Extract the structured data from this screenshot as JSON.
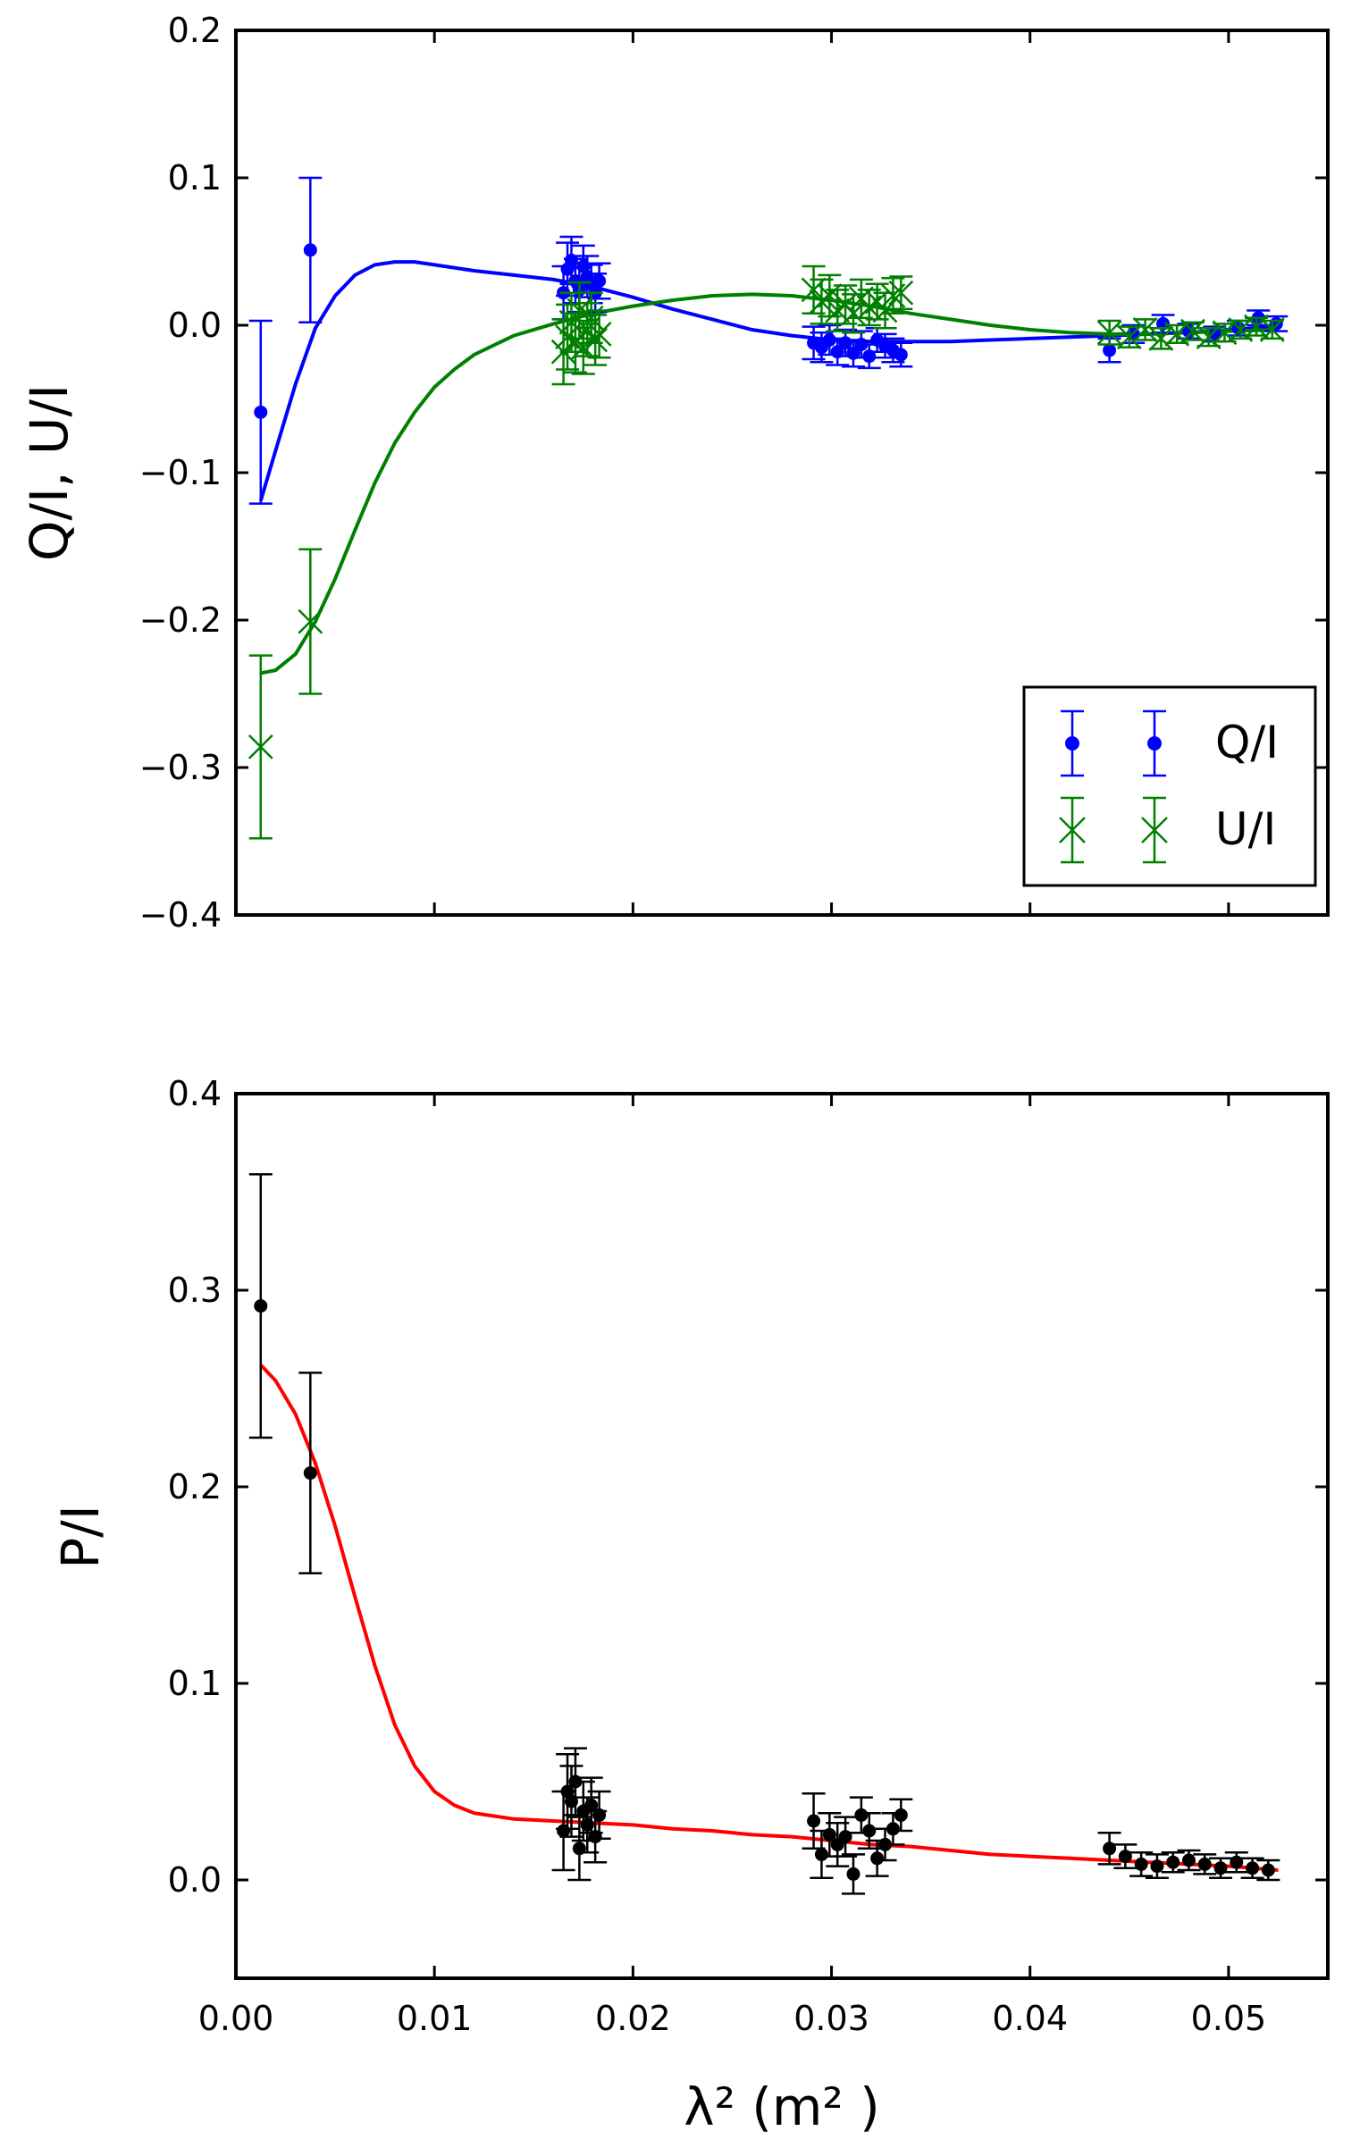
{
  "chart_data": [
    {
      "type": "scatter",
      "ylabel": "Q/I, U/I",
      "xlim": [
        0.0,
        0.055
      ],
      "ylim": [
        -0.4,
        0.2
      ],
      "x_ticks": [
        0.0,
        0.01,
        0.02,
        0.03,
        0.04,
        0.05
      ],
      "y_ticks": [
        -0.4,
        -0.3,
        -0.2,
        -0.1,
        0.0,
        0.1,
        0.2
      ],
      "y_tick_labels": [
        "−0.4",
        "−0.3",
        "−0.2",
        "−0.1",
        "0.0",
        "0.1",
        "0.2"
      ],
      "legend": {
        "placement": "lower-right",
        "entries": [
          "Q/I",
          "U/I"
        ]
      },
      "colors": {
        "q": "#0000ff",
        "u": "#008000"
      },
      "series": [
        {
          "name": "Q/I",
          "marker": "o",
          "color": "#0000ff",
          "points": [
            {
              "x": 0.00125,
              "y": -0.059,
              "err": 0.062
            },
            {
              "x": 0.00375,
              "y": 0.051,
              "err": 0.049
            },
            {
              "x": 0.0165,
              "y": 0.022,
              "err": 0.018
            },
            {
              "x": 0.0167,
              "y": 0.038,
              "err": 0.018
            },
            {
              "x": 0.0169,
              "y": 0.044,
              "err": 0.016
            },
            {
              "x": 0.0171,
              "y": 0.03,
              "err": 0.015
            },
            {
              "x": 0.0173,
              "y": 0.024,
              "err": 0.015
            },
            {
              "x": 0.0175,
              "y": 0.04,
              "err": 0.014
            },
            {
              "x": 0.0177,
              "y": 0.033,
              "err": 0.014
            },
            {
              "x": 0.0179,
              "y": 0.028,
              "err": 0.013
            },
            {
              "x": 0.0181,
              "y": 0.022,
              "err": 0.013
            },
            {
              "x": 0.0183,
              "y": 0.03,
              "err": 0.012
            },
            {
              "x": 0.0291,
              "y": -0.012,
              "err": 0.011
            },
            {
              "x": 0.0295,
              "y": -0.015,
              "err": 0.01
            },
            {
              "x": 0.0299,
              "y": -0.01,
              "err": 0.01
            },
            {
              "x": 0.0303,
              "y": -0.018,
              "err": 0.009
            },
            {
              "x": 0.0307,
              "y": -0.012,
              "err": 0.009
            },
            {
              "x": 0.0311,
              "y": -0.019,
              "err": 0.009
            },
            {
              "x": 0.0315,
              "y": -0.013,
              "err": 0.009
            },
            {
              "x": 0.0319,
              "y": -0.021,
              "err": 0.008
            },
            {
              "x": 0.0323,
              "y": -0.01,
              "err": 0.008
            },
            {
              "x": 0.0327,
              "y": -0.014,
              "err": 0.008
            },
            {
              "x": 0.0331,
              "y": -0.017,
              "err": 0.008
            },
            {
              "x": 0.0335,
              "y": -0.02,
              "err": 0.008
            },
            {
              "x": 0.044,
              "y": -0.017,
              "err": 0.008
            },
            {
              "x": 0.0452,
              "y": -0.006,
              "err": 0.006
            },
            {
              "x": 0.0467,
              "y": 0.001,
              "err": 0.006
            },
            {
              "x": 0.048,
              "y": -0.004,
              "err": 0.005
            },
            {
              "x": 0.0493,
              "y": -0.006,
              "err": 0.005
            },
            {
              "x": 0.0505,
              "y": -0.002,
              "err": 0.005
            },
            {
              "x": 0.0515,
              "y": 0.005,
              "err": 0.005
            },
            {
              "x": 0.0524,
              "y": 0.001,
              "err": 0.005
            }
          ],
          "fit": [
            [
              0.00125,
              -0.119
            ],
            [
              0.002,
              -0.085
            ],
            [
              0.003,
              -0.04
            ],
            [
              0.004,
              -0.002
            ],
            [
              0.005,
              0.02
            ],
            [
              0.006,
              0.034
            ],
            [
              0.007,
              0.041
            ],
            [
              0.008,
              0.043
            ],
            [
              0.009,
              0.043
            ],
            [
              0.01,
              0.041
            ],
            [
              0.012,
              0.037
            ],
            [
              0.014,
              0.034
            ],
            [
              0.016,
              0.031
            ],
            [
              0.018,
              0.026
            ],
            [
              0.02,
              0.019
            ],
            [
              0.022,
              0.011
            ],
            [
              0.024,
              0.004
            ],
            [
              0.026,
              -0.003
            ],
            [
              0.028,
              -0.007
            ],
            [
              0.03,
              -0.01
            ],
            [
              0.032,
              -0.011
            ],
            [
              0.034,
              -0.011
            ],
            [
              0.036,
              -0.011
            ],
            [
              0.038,
              -0.01
            ],
            [
              0.04,
              -0.009
            ],
            [
              0.042,
              -0.008
            ],
            [
              0.044,
              -0.007
            ],
            [
              0.046,
              -0.006
            ],
            [
              0.048,
              -0.005
            ],
            [
              0.05,
              -0.003
            ],
            [
              0.0525,
              -0.001
            ]
          ]
        },
        {
          "name": "U/I",
          "marker": "x",
          "color": "#008000",
          "points": [
            {
              "x": 0.00125,
              "y": -0.286,
              "err": 0.062
            },
            {
              "x": 0.00375,
              "y": -0.201,
              "err": 0.049
            },
            {
              "x": 0.0165,
              "y": -0.018,
              "err": 0.022
            },
            {
              "x": 0.0167,
              "y": -0.008,
              "err": 0.022
            },
            {
              "x": 0.0169,
              "y": 0.002,
              "err": 0.02
            },
            {
              "x": 0.0171,
              "y": -0.012,
              "err": 0.02
            },
            {
              "x": 0.0173,
              "y": 0.01,
              "err": 0.019
            },
            {
              "x": 0.0175,
              "y": -0.015,
              "err": 0.018
            },
            {
              "x": 0.0177,
              "y": -0.003,
              "err": 0.018
            },
            {
              "x": 0.0179,
              "y": 0.005,
              "err": 0.017
            },
            {
              "x": 0.0181,
              "y": -0.01,
              "err": 0.017
            },
            {
              "x": 0.0183,
              "y": -0.006,
              "err": 0.016
            },
            {
              "x": 0.0291,
              "y": 0.024,
              "err": 0.016
            },
            {
              "x": 0.0295,
              "y": 0.016,
              "err": 0.015
            },
            {
              "x": 0.0299,
              "y": 0.02,
              "err": 0.014
            },
            {
              "x": 0.0303,
              "y": 0.01,
              "err": 0.014
            },
            {
              "x": 0.0307,
              "y": 0.014,
              "err": 0.013
            },
            {
              "x": 0.0311,
              "y": 0.008,
              "err": 0.013
            },
            {
              "x": 0.0315,
              "y": 0.018,
              "err": 0.013
            },
            {
              "x": 0.0319,
              "y": 0.012,
              "err": 0.012
            },
            {
              "x": 0.0323,
              "y": 0.016,
              "err": 0.012
            },
            {
              "x": 0.0327,
              "y": 0.01,
              "err": 0.012
            },
            {
              "x": 0.0331,
              "y": 0.02,
              "err": 0.012
            },
            {
              "x": 0.0335,
              "y": 0.022,
              "err": 0.011
            },
            {
              "x": 0.044,
              "y": -0.005,
              "err": 0.008
            },
            {
              "x": 0.045,
              "y": -0.008,
              "err": 0.007
            },
            {
              "x": 0.0458,
              "y": -0.003,
              "err": 0.007
            },
            {
              "x": 0.0466,
              "y": -0.009,
              "err": 0.007
            },
            {
              "x": 0.0474,
              "y": -0.006,
              "err": 0.006
            },
            {
              "x": 0.0482,
              "y": -0.004,
              "err": 0.006
            },
            {
              "x": 0.049,
              "y": -0.008,
              "err": 0.006
            },
            {
              "x": 0.0498,
              "y": -0.005,
              "err": 0.006
            },
            {
              "x": 0.0506,
              "y": -0.003,
              "err": 0.006
            },
            {
              "x": 0.0514,
              "y": -0.001,
              "err": 0.006
            },
            {
              "x": 0.0522,
              "y": -0.003,
              "err": 0.006
            }
          ],
          "fit": [
            [
              0.00125,
              -0.236
            ],
            [
              0.002,
              -0.234
            ],
            [
              0.003,
              -0.223
            ],
            [
              0.004,
              -0.201
            ],
            [
              0.005,
              -0.172
            ],
            [
              0.006,
              -0.139
            ],
            [
              0.007,
              -0.107
            ],
            [
              0.008,
              -0.08
            ],
            [
              0.009,
              -0.059
            ],
            [
              0.01,
              -0.042
            ],
            [
              0.011,
              -0.03
            ],
            [
              0.012,
              -0.02
            ],
            [
              0.014,
              -0.007
            ],
            [
              0.016,
              0.001
            ],
            [
              0.018,
              0.008
            ],
            [
              0.02,
              0.013
            ],
            [
              0.022,
              0.017
            ],
            [
              0.024,
              0.02
            ],
            [
              0.026,
              0.021
            ],
            [
              0.028,
              0.02
            ],
            [
              0.03,
              0.017
            ],
            [
              0.032,
              0.013
            ],
            [
              0.034,
              0.008
            ],
            [
              0.036,
              0.004
            ],
            [
              0.038,
              0.0
            ],
            [
              0.04,
              -0.003
            ],
            [
              0.042,
              -0.005
            ],
            [
              0.044,
              -0.006
            ],
            [
              0.046,
              -0.006
            ],
            [
              0.048,
              -0.005
            ],
            [
              0.05,
              -0.004
            ],
            [
              0.0525,
              -0.003
            ]
          ]
        }
      ]
    },
    {
      "type": "scatter",
      "ylabel": "P/I",
      "xlabel": "λ² (m² )",
      "xlim": [
        0.0,
        0.055
      ],
      "ylim": [
        -0.05,
        0.4
      ],
      "x_ticks": [
        0.0,
        0.01,
        0.02,
        0.03,
        0.04,
        0.05
      ],
      "x_tick_labels": [
        "0.00",
        "0.01",
        "0.02",
        "0.03",
        "0.04",
        "0.05"
      ],
      "y_ticks": [
        0.0,
        0.1,
        0.2,
        0.3,
        0.4
      ],
      "y_tick_labels": [
        "0.0",
        "0.1",
        "0.2",
        "0.3",
        "0.4"
      ],
      "colors": {
        "p": "#000000",
        "fit": "#ff0000"
      },
      "series": [
        {
          "name": "P/I",
          "marker": "o",
          "color": "#000000",
          "points": [
            {
              "x": 0.00125,
              "y": 0.292,
              "err": 0.067
            },
            {
              "x": 0.00375,
              "y": 0.207,
              "err": 0.051
            },
            {
              "x": 0.0165,
              "y": 0.025,
              "err": 0.02
            },
            {
              "x": 0.0167,
              "y": 0.045,
              "err": 0.019
            },
            {
              "x": 0.0169,
              "y": 0.04,
              "err": 0.018
            },
            {
              "x": 0.0171,
              "y": 0.05,
              "err": 0.017
            },
            {
              "x": 0.0173,
              "y": 0.016,
              "err": 0.016
            },
            {
              "x": 0.0175,
              "y": 0.035,
              "err": 0.015
            },
            {
              "x": 0.0177,
              "y": 0.028,
              "err": 0.014
            },
            {
              "x": 0.0179,
              "y": 0.038,
              "err": 0.014
            },
            {
              "x": 0.0181,
              "y": 0.022,
              "err": 0.013
            },
            {
              "x": 0.0183,
              "y": 0.033,
              "err": 0.012
            },
            {
              "x": 0.0291,
              "y": 0.03,
              "err": 0.014
            },
            {
              "x": 0.0295,
              "y": 0.013,
              "err": 0.012
            },
            {
              "x": 0.0299,
              "y": 0.023,
              "err": 0.011
            },
            {
              "x": 0.0303,
              "y": 0.018,
              "err": 0.011
            },
            {
              "x": 0.0307,
              "y": 0.022,
              "err": 0.01
            },
            {
              "x": 0.0311,
              "y": 0.003,
              "err": 0.01
            },
            {
              "x": 0.0315,
              "y": 0.033,
              "err": 0.009
            },
            {
              "x": 0.0319,
              "y": 0.025,
              "err": 0.009
            },
            {
              "x": 0.0323,
              "y": 0.011,
              "err": 0.009
            },
            {
              "x": 0.0327,
              "y": 0.018,
              "err": 0.008
            },
            {
              "x": 0.0331,
              "y": 0.026,
              "err": 0.008
            },
            {
              "x": 0.0335,
              "y": 0.033,
              "err": 0.008
            },
            {
              "x": 0.044,
              "y": 0.016,
              "err": 0.008
            },
            {
              "x": 0.0448,
              "y": 0.012,
              "err": 0.006
            },
            {
              "x": 0.0456,
              "y": 0.008,
              "err": 0.006
            },
            {
              "x": 0.0464,
              "y": 0.007,
              "err": 0.006
            },
            {
              "x": 0.0472,
              "y": 0.009,
              "err": 0.005
            },
            {
              "x": 0.048,
              "y": 0.01,
              "err": 0.005
            },
            {
              "x": 0.0488,
              "y": 0.008,
              "err": 0.005
            },
            {
              "x": 0.0496,
              "y": 0.006,
              "err": 0.005
            },
            {
              "x": 0.0504,
              "y": 0.009,
              "err": 0.005
            },
            {
              "x": 0.0512,
              "y": 0.006,
              "err": 0.005
            },
            {
              "x": 0.052,
              "y": 0.005,
              "err": 0.005
            }
          ],
          "fit": [
            [
              0.00125,
              0.262
            ],
            [
              0.002,
              0.254
            ],
            [
              0.003,
              0.237
            ],
            [
              0.004,
              0.212
            ],
            [
              0.005,
              0.18
            ],
            [
              0.006,
              0.144
            ],
            [
              0.007,
              0.109
            ],
            [
              0.008,
              0.079
            ],
            [
              0.009,
              0.058
            ],
            [
              0.01,
              0.045
            ],
            [
              0.011,
              0.038
            ],
            [
              0.012,
              0.034
            ],
            [
              0.014,
              0.031
            ],
            [
              0.016,
              0.03
            ],
            [
              0.018,
              0.029
            ],
            [
              0.02,
              0.028
            ],
            [
              0.022,
              0.026
            ],
            [
              0.024,
              0.025
            ],
            [
              0.026,
              0.023
            ],
            [
              0.028,
              0.022
            ],
            [
              0.03,
              0.02
            ],
            [
              0.032,
              0.018
            ],
            [
              0.034,
              0.017
            ],
            [
              0.036,
              0.015
            ],
            [
              0.038,
              0.013
            ],
            [
              0.04,
              0.012
            ],
            [
              0.042,
              0.011
            ],
            [
              0.044,
              0.01
            ],
            [
              0.046,
              0.009
            ],
            [
              0.048,
              0.008
            ],
            [
              0.05,
              0.007
            ],
            [
              0.0525,
              0.005
            ]
          ]
        }
      ]
    }
  ]
}
